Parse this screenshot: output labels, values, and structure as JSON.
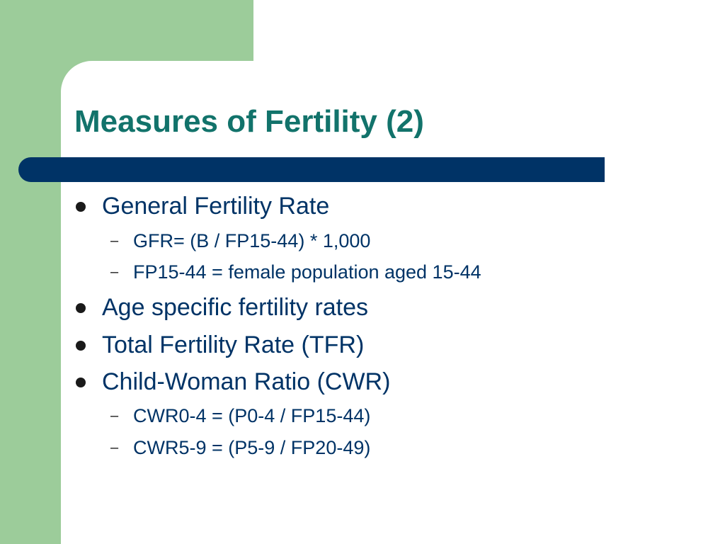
{
  "slide": {
    "title": "Measures of Fertility (2)",
    "bullets": [
      {
        "text": "General Fertility Rate",
        "sub": [
          "GFR= (B / FP15-44) * 1,000",
          "FP15-44 = female population aged 15-44"
        ]
      },
      {
        "text": "Age specific fertility rates",
        "sub": []
      },
      {
        "text": "Total Fertility Rate (TFR)",
        "sub": []
      },
      {
        "text": "Child-Woman Ratio (CWR)",
        "sub": [
          "CWR0-4 = (P0-4 / FP15-44)",
          "CWR5-9 = (P5-9 / FP20-49)"
        ]
      }
    ],
    "sub_marker": "–"
  },
  "colors": {
    "accent_green": "#9ccc9a",
    "title_teal": "#12736b",
    "bar_navy": "#003366",
    "body_text": "#003366"
  }
}
